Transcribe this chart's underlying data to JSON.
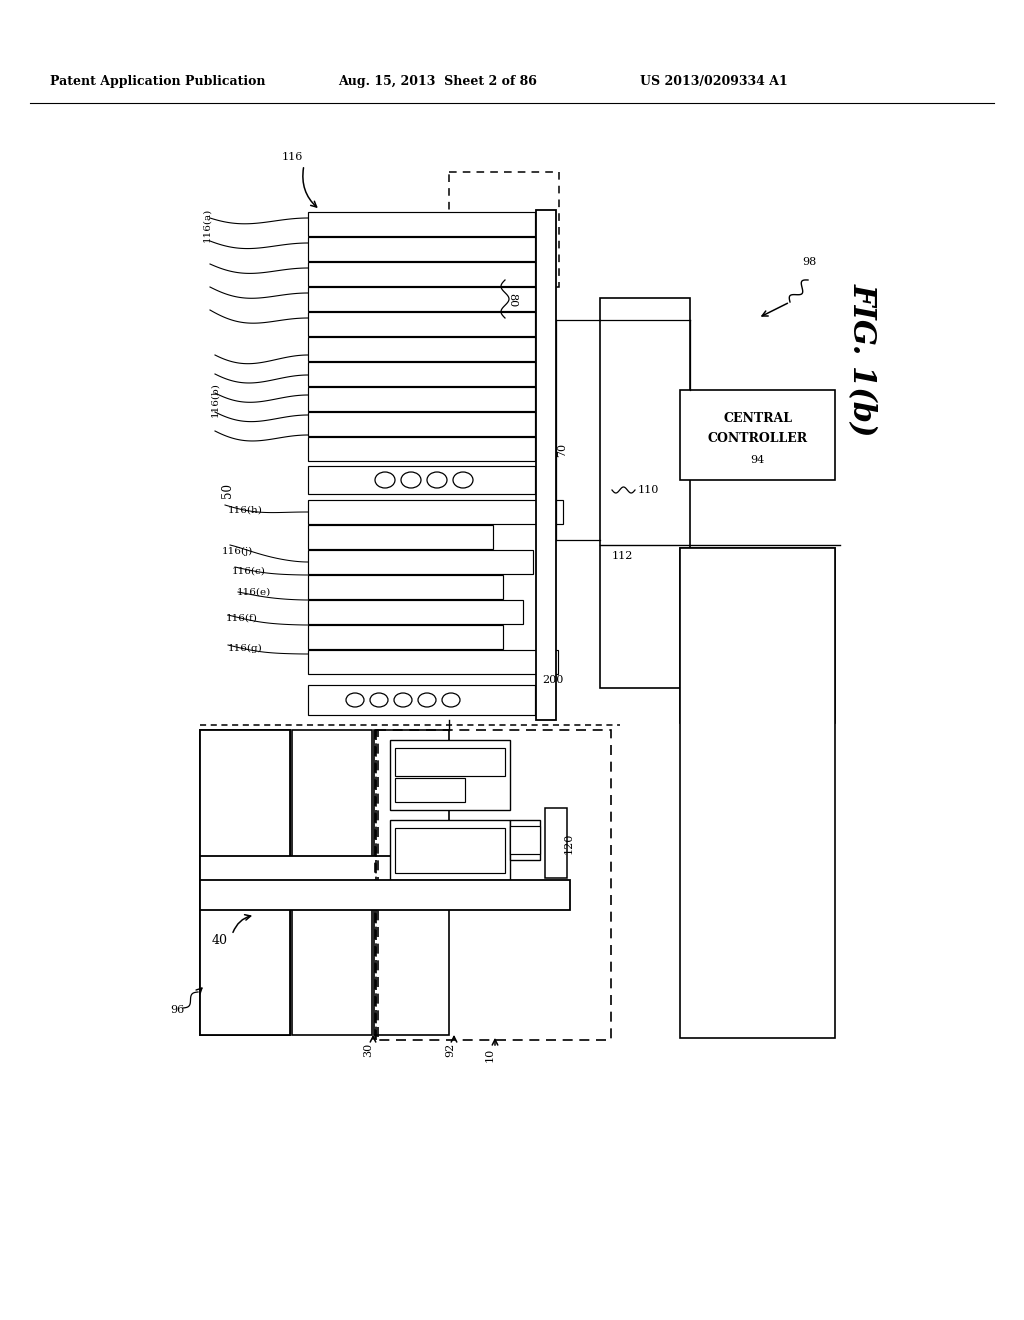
{
  "bg_color": "#ffffff",
  "header_left": "Patent Application Publication",
  "header_mid": "Aug. 15, 2013  Sheet 2 of 86",
  "header_right": "US 2013/0209334 A1",
  "fig_label": "FIG. 1(b)"
}
